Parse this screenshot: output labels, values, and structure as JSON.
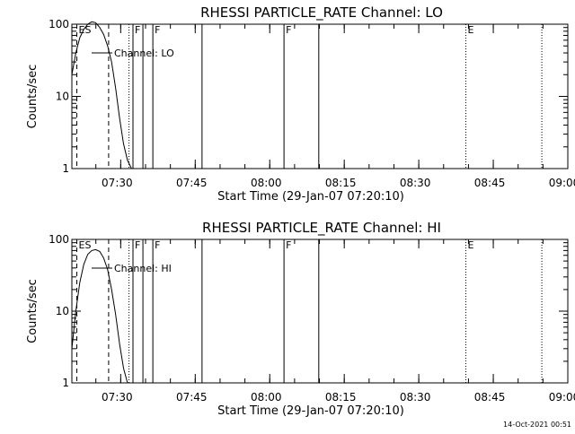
{
  "chart_data": [
    {
      "type": "line",
      "title": "RHESSI PARTICLE_RATE Channel: LO",
      "xlabel": "Start Time (29-Jan-07 07:20:10)",
      "ylabel": "Counts/sec",
      "x_unit": "minutes after 07:20:10",
      "xlim": [
        0,
        99.83
      ],
      "ylim": [
        1,
        100
      ],
      "y_scale": "log",
      "xticks": [
        {
          "x": 9.83,
          "label": "07:30"
        },
        {
          "x": 24.83,
          "label": "07:45"
        },
        {
          "x": 39.83,
          "label": "08:00"
        },
        {
          "x": 54.83,
          "label": "08:15"
        },
        {
          "x": 69.83,
          "label": "08:30"
        },
        {
          "x": 84.83,
          "label": "08:45"
        },
        {
          "x": 99.83,
          "label": "09:00"
        }
      ],
      "yticks": [
        {
          "y": 1,
          "label": "1"
        },
        {
          "y": 10,
          "label": "10"
        },
        {
          "y": 100,
          "label": "100"
        }
      ],
      "legend": {
        "label": "Channel: LO",
        "position": "top-left"
      },
      "series": [
        {
          "x": [
            0.0,
            0.8,
            1.6,
            2.4,
            3.2,
            4.0,
            4.8,
            5.6,
            6.4,
            7.2,
            8.0,
            8.8,
            9.6,
            10.4,
            11.2,
            12.0
          ],
          "y": [
            20,
            40,
            65,
            85,
            100,
            108,
            105,
            90,
            72,
            50,
            30,
            13,
            5,
            2.2,
            1.3,
            1.0
          ],
          "color": "#000000"
        }
      ],
      "markers": [
        {
          "x": 1.0,
          "style": "dashed",
          "label": "ES"
        },
        {
          "x": 7.4,
          "style": "dashed",
          "label": ""
        },
        {
          "x": 11.5,
          "style": "dotted",
          "label": ""
        },
        {
          "x": 12.3,
          "style": "solid",
          "label": "F"
        },
        {
          "x": 14.3,
          "style": "solid",
          "label": ""
        },
        {
          "x": 16.3,
          "style": "solid",
          "label": "F"
        },
        {
          "x": 26.2,
          "style": "solid",
          "label": ""
        },
        {
          "x": 42.7,
          "style": "solid",
          "label": "F"
        },
        {
          "x": 49.7,
          "style": "solid",
          "label": ""
        },
        {
          "x": 79.3,
          "style": "dotted",
          "label": "E"
        },
        {
          "x": 94.6,
          "style": "dotted",
          "label": ""
        }
      ]
    },
    {
      "type": "line",
      "title": "RHESSI PARTICLE_RATE Channel: HI",
      "xlabel": "Start Time (29-Jan-07 07:20:10)",
      "ylabel": "Counts/sec",
      "x_unit": "minutes after 07:20:10",
      "xlim": [
        0,
        99.83
      ],
      "ylim": [
        1,
        100
      ],
      "y_scale": "log",
      "xticks": [
        {
          "x": 9.83,
          "label": "07:30"
        },
        {
          "x": 24.83,
          "label": "07:45"
        },
        {
          "x": 39.83,
          "label": "08:00"
        },
        {
          "x": 54.83,
          "label": "08:15"
        },
        {
          "x": 69.83,
          "label": "08:30"
        },
        {
          "x": 84.83,
          "label": "08:45"
        },
        {
          "x": 99.83,
          "label": "09:00"
        }
      ],
      "yticks": [
        {
          "y": 1,
          "label": "1"
        },
        {
          "y": 10,
          "label": "10"
        },
        {
          "y": 100,
          "label": "100"
        }
      ],
      "legend": {
        "label": "Channel: HI",
        "position": "top-left"
      },
      "series": [
        {
          "x": [
            0.0,
            0.8,
            1.6,
            2.4,
            3.2,
            4.0,
            4.8,
            5.6,
            6.4,
            7.2,
            8.0,
            8.8,
            9.6,
            10.4,
            11.2
          ],
          "y": [
            3,
            10,
            25,
            45,
            62,
            70,
            72,
            68,
            55,
            38,
            20,
            9,
            3.5,
            1.6,
            1.0
          ],
          "color": "#000000"
        }
      ],
      "markers": [
        {
          "x": 1.0,
          "style": "dashed",
          "label": "ES"
        },
        {
          "x": 7.4,
          "style": "dashed",
          "label": ""
        },
        {
          "x": 11.5,
          "style": "dotted",
          "label": ""
        },
        {
          "x": 12.3,
          "style": "solid",
          "label": "F"
        },
        {
          "x": 14.3,
          "style": "solid",
          "label": ""
        },
        {
          "x": 16.3,
          "style": "solid",
          "label": "F"
        },
        {
          "x": 26.2,
          "style": "solid",
          "label": ""
        },
        {
          "x": 42.7,
          "style": "solid",
          "label": "F"
        },
        {
          "x": 49.7,
          "style": "solid",
          "label": ""
        },
        {
          "x": 79.3,
          "style": "dotted",
          "label": "E"
        },
        {
          "x": 94.6,
          "style": "dotted",
          "label": ""
        }
      ]
    }
  ],
  "footer": {
    "timestamp": "14-Oct-2021 00:51"
  }
}
